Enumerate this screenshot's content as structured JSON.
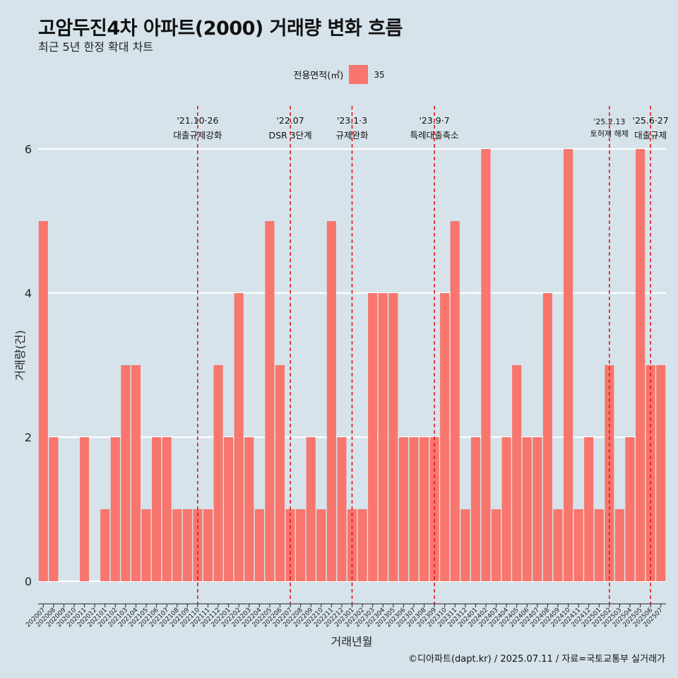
{
  "title": "고암두진4차 아파트(2000) 거래량 변화 흐름",
  "subtitle": "최근 5년 한정 확대 차트",
  "legend": {
    "title": "전용면적(㎡)",
    "item": "35",
    "color": "#f8766d"
  },
  "caption": "©디아파트(dapt.kr) / 2025.07.11 / 자료=국토교통부 실거래가",
  "colors": {
    "bar": "#f8766d",
    "event_line": "#e8141a",
    "background": "#d6e3ea",
    "grid": "#ffffff"
  },
  "chart_data": {
    "type": "bar",
    "xlabel": "거래년월",
    "ylabel": "거래량(건)",
    "ylim": [
      0,
      6
    ],
    "yticks": [
      0,
      2,
      4,
      6
    ],
    "grid": true,
    "legend_position": "top",
    "categories": [
      "202007",
      "202008",
      "202009",
      "202010",
      "202011",
      "202012",
      "202101",
      "202102",
      "202103",
      "202104",
      "202105",
      "202106",
      "202107",
      "202108",
      "202109",
      "202110",
      "202111",
      "202112",
      "202201",
      "202202",
      "202203",
      "202204",
      "202205",
      "202206",
      "202207",
      "202208",
      "202209",
      "202210",
      "202211",
      "202212",
      "202301",
      "202302",
      "202303",
      "202304",
      "202305",
      "202306",
      "202307",
      "202308",
      "202309",
      "202310",
      "202311",
      "202312",
      "202401",
      "202402",
      "202403",
      "202404",
      "202405",
      "202406",
      "202407",
      "202408",
      "202409",
      "202410",
      "202411",
      "202412",
      "202501",
      "202502",
      "202503",
      "202504",
      "202505",
      "202506",
      "202507"
    ],
    "series": [
      {
        "name": "35",
        "values": [
          5,
          2,
          0,
          0,
          2,
          0,
          1,
          2,
          3,
          3,
          1,
          2,
          2,
          1,
          1,
          1,
          1,
          3,
          2,
          4,
          2,
          1,
          5,
          3,
          1,
          1,
          2,
          1,
          5,
          2,
          1,
          1,
          4,
          4,
          4,
          2,
          2,
          2,
          2,
          4,
          5,
          1,
          2,
          6,
          1,
          2,
          3,
          2,
          2,
          4,
          1,
          6,
          1,
          2,
          1,
          3,
          1,
          2,
          6,
          3,
          3
        ]
      }
    ],
    "annotations": [
      {
        "date": "'21.10·26",
        "label": "대출규제강화",
        "x": "202110"
      },
      {
        "date": "'22.07",
        "label": "DSR 3단계",
        "x": "202207"
      },
      {
        "date": "'23.1·3",
        "label": "규제완화",
        "x": "202301"
      },
      {
        "date": "'23.9·7",
        "label": "특례대출축소",
        "x": "202309"
      },
      {
        "date": "'25.2.13",
        "label": "토허제 해제",
        "x": "202502"
      },
      {
        "date": "'25.6·27",
        "label": "대출규제",
        "x": "202506"
      }
    ]
  }
}
